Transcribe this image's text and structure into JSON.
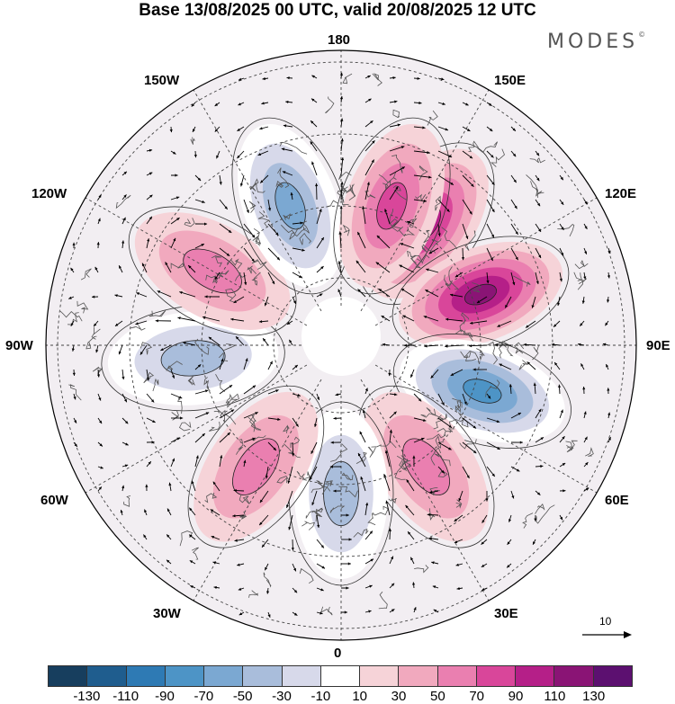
{
  "title": "Base 13/08/2025 00 UTC, valid 20/08/2025 12 UTC",
  "logo": {
    "text": "MODES",
    "mark": "©"
  },
  "map": {
    "projection": "north-polar-stereographic",
    "longitude_labels": {
      "top": "180",
      "bottom": "0",
      "left": "90W",
      "right": "90E",
      "upper_left_1": "150W",
      "upper_left_2": "120W",
      "upper_right_1": "150E",
      "upper_right_2": "120E",
      "lower_left_1": "60W",
      "lower_left_2": "30W",
      "lower_right_1": "60E",
      "lower_right_2": "30E"
    },
    "anomaly_centers": [
      {
        "lon_deg": 145,
        "value": 80
      },
      {
        "lon_deg": 110,
        "value": 110
      },
      {
        "lon_deg": 72,
        "value": -80
      },
      {
        "lon_deg": 35,
        "value": 50
      },
      {
        "lon_deg": 0,
        "value": -40
      },
      {
        "lon_deg": -35,
        "value": 50
      },
      {
        "lon_deg": -85,
        "value": -50
      },
      {
        "lon_deg": -120,
        "value": 50
      },
      {
        "lon_deg": -160,
        "value": -60
      },
      {
        "lon_deg": -200,
        "value": 60
      }
    ],
    "wind_reference": {
      "label": "10"
    }
  },
  "colorbar": {
    "colors": [
      "#173e5e",
      "#1f5d8e",
      "#2e7ab4",
      "#4d94c6",
      "#7ba8d2",
      "#a9bddb",
      "#d7d9ea",
      "#ffffff",
      "#f6d3d8",
      "#f1a9be",
      "#ea7fb0",
      "#d9469a",
      "#b51f88",
      "#8a1475",
      "#5c1070"
    ],
    "labels": [
      "-130",
      "-110",
      "-90",
      "-70",
      "-50",
      "-30",
      "-10",
      "10",
      "30",
      "50",
      "70",
      "90",
      "110",
      "130"
    ]
  }
}
